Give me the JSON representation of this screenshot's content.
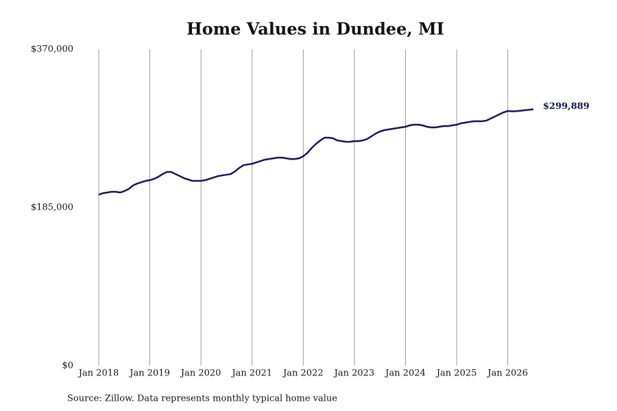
{
  "chart_data": {
    "type": "line",
    "title": "Home Values in Dundee, MI",
    "caption": "Source: Zillow. Data represents monthly typical home value",
    "x": [
      "2018-01",
      "2018-02",
      "2018-03",
      "2018-04",
      "2018-05",
      "2018-06",
      "2018-07",
      "2018-08",
      "2018-09",
      "2018-10",
      "2018-11",
      "2018-12",
      "2019-01",
      "2019-02",
      "2019-03",
      "2019-04",
      "2019-05",
      "2019-06",
      "2019-07",
      "2019-08",
      "2019-09",
      "2019-10",
      "2019-11",
      "2019-12",
      "2020-01",
      "2020-02",
      "2020-03",
      "2020-04",
      "2020-05",
      "2020-06",
      "2020-07",
      "2020-08",
      "2020-09",
      "2020-10",
      "2020-11",
      "2020-12",
      "2021-01",
      "2021-02",
      "2021-03",
      "2021-04",
      "2021-05",
      "2021-06",
      "2021-07",
      "2021-08",
      "2021-09",
      "2021-10",
      "2021-11",
      "2021-12",
      "2022-01",
      "2022-02",
      "2022-03",
      "2022-04",
      "2022-05",
      "2022-06",
      "2022-07",
      "2022-08",
      "2022-09",
      "2022-10",
      "2022-11",
      "2022-12",
      "2023-01",
      "2023-02",
      "2023-03",
      "2023-04",
      "2023-05",
      "2023-06",
      "2023-07",
      "2023-08",
      "2023-09",
      "2023-10",
      "2023-11",
      "2023-12",
      "2024-01",
      "2024-02",
      "2024-03",
      "2024-04",
      "2024-05",
      "2024-06",
      "2024-07",
      "2024-08",
      "2024-09",
      "2024-10",
      "2024-11",
      "2024-12",
      "2025-01",
      "2025-02",
      "2025-03",
      "2025-04",
      "2025-05",
      "2025-06",
      "2025-07",
      "2025-08",
      "2025-09",
      "2025-10",
      "2025-11",
      "2025-12",
      "2026-01",
      "2026-02",
      "2026-03",
      "2026-04",
      "2026-05",
      "2026-06",
      "2026-07"
    ],
    "series": [
      {
        "name": "Home value",
        "color": "#14145a",
        "values": [
          200200,
          201800,
          202600,
          203400,
          203400,
          202600,
          204200,
          206600,
          210600,
          213000,
          214600,
          216200,
          217000,
          218600,
          221000,
          224200,
          226600,
          226600,
          224200,
          221800,
          219400,
          217800,
          216200,
          216200,
          216200,
          217000,
          218600,
          220200,
          221800,
          222600,
          223400,
          224200,
          227400,
          231400,
          234600,
          235400,
          236200,
          237800,
          239400,
          241000,
          241800,
          242600,
          243400,
          243400,
          242600,
          241800,
          241800,
          242600,
          245000,
          249000,
          254700,
          259500,
          263500,
          266700,
          266700,
          265900,
          263500,
          262700,
          261900,
          261900,
          262700,
          262700,
          263500,
          265100,
          268300,
          271500,
          273900,
          275500,
          276300,
          277100,
          277900,
          278700,
          279500,
          281100,
          281900,
          281900,
          281100,
          279500,
          278700,
          278700,
          279500,
          280300,
          280300,
          281100,
          281900,
          283500,
          284300,
          285100,
          285900,
          285900,
          285900,
          286700,
          289100,
          291500,
          293900,
          296300,
          297900,
          297500,
          297700,
          298200,
          298800,
          299300,
          299889
        ]
      }
    ],
    "annotations": [
      {
        "x": "2026-07",
        "text": "$299,889"
      }
    ],
    "xlim": [
      "2018-01",
      "2026-07"
    ],
    "xticks": [
      {
        "value": "2018-01",
        "label": "Jan 2018"
      },
      {
        "value": "2019-01",
        "label": "Jan 2019"
      },
      {
        "value": "2020-01",
        "label": "Jan 2020"
      },
      {
        "value": "2021-01",
        "label": "Jan 2021"
      },
      {
        "value": "2022-01",
        "label": "Jan 2022"
      },
      {
        "value": "2023-01",
        "label": "Jan 2023"
      },
      {
        "value": "2024-01",
        "label": "Jan 2024"
      },
      {
        "value": "2025-01",
        "label": "Jan 2025"
      },
      {
        "value": "2026-01",
        "label": "Jan 2026"
      }
    ],
    "ylim": [
      0,
      370000
    ],
    "yticks": [
      {
        "value": 0,
        "label": "$0"
      },
      {
        "value": 185000,
        "label": "$185,000"
      },
      {
        "value": 370000,
        "label": "$370,000"
      }
    ],
    "grid": "x"
  }
}
